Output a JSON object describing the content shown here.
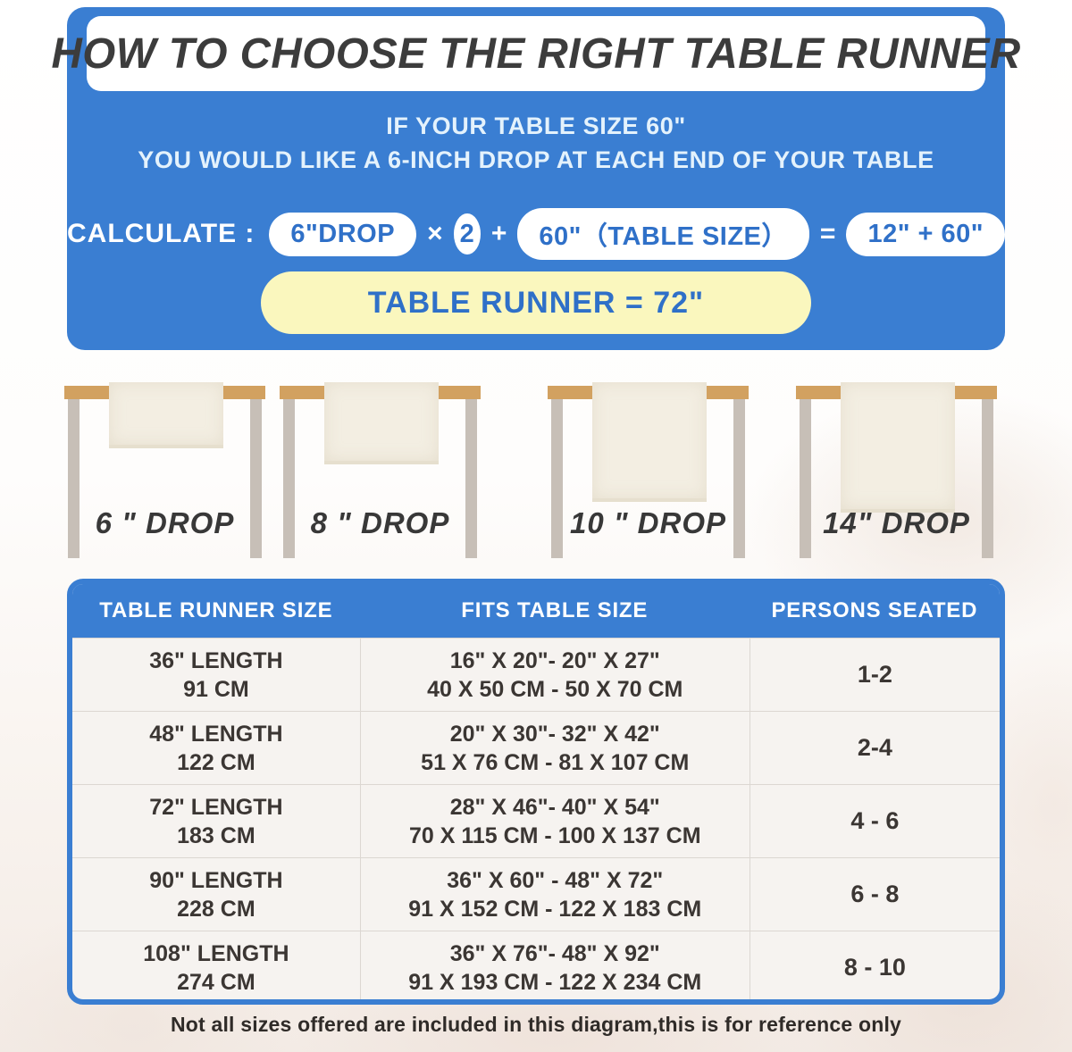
{
  "page": {
    "title": "HOW TO CHOOSE THE RIGHT TABLE RUNNER",
    "subtitle_line1": "IF YOUR TABLE SIZE 60\"",
    "subtitle_line2": "YOU WOULD LIKE A 6-INCH DROP AT EACH END OF YOUR TABLE"
  },
  "calculation": {
    "label": "CALCULATE :",
    "drop_pill": "6\"DROP",
    "times": "×",
    "multiplier": "2",
    "plus": "+",
    "table_size_pill": "60\"（TABLE SIZE）",
    "equals": "=",
    "result_pill": "12\" + 60\"",
    "final_result": "TABLE RUNNER = 72\""
  },
  "drops": [
    {
      "label": "6 \" DROP"
    },
    {
      "label": "8 \" DROP"
    },
    {
      "label": "10 \" DROP"
    },
    {
      "label": "14\" DROP"
    }
  ],
  "size_table": {
    "columns": [
      "TABLE RUNNER SIZE",
      "FITS TABLE SIZE",
      "PERSONS SEATED"
    ],
    "rows": [
      {
        "runner_in": "36\" LENGTH",
        "runner_cm": "91 CM",
        "fits_in": "16\" X 20\"- 20\" X 27\"",
        "fits_cm": "40 X 50 CM - 50 X 70 CM",
        "persons": "1-2"
      },
      {
        "runner_in": "48\" LENGTH",
        "runner_cm": "122 CM",
        "fits_in": "20\" X 30\"- 32\" X 42\"",
        "fits_cm": "51 X 76 CM - 81 X 107 CM",
        "persons": "2-4"
      },
      {
        "runner_in": "72\" LENGTH",
        "runner_cm": "183 CM",
        "fits_in": "28\" X 46\"- 40\" X 54\"",
        "fits_cm": "70 X 115 CM - 100 X 137 CM",
        "persons": "4 - 6"
      },
      {
        "runner_in": "90\" LENGTH",
        "runner_cm": "228 CM",
        "fits_in": "36\" X 60\" - 48\" X 72\"",
        "fits_cm": "91 X 152 CM - 122 X 183 CM",
        "persons": "6 - 8"
      },
      {
        "runner_in": "108\" LENGTH",
        "runner_cm": "274 CM",
        "fits_in": "36\" X 76\"- 48\" X 92\"",
        "fits_cm": "91 X 193 CM - 122 X 234 CM",
        "persons": "8 - 10"
      }
    ]
  },
  "footer_note": "Not all sizes offered are included in this diagram,this is for reference only",
  "colors": {
    "panel_blue": "#3A7ED2",
    "accent_text_blue": "#2F70C8",
    "highlight_yellow": "#FAF7BE",
    "tabletop_tan": "#D2A160",
    "leg_gray": "#C7BFB7",
    "runner_cream": "#F3EEE2"
  }
}
